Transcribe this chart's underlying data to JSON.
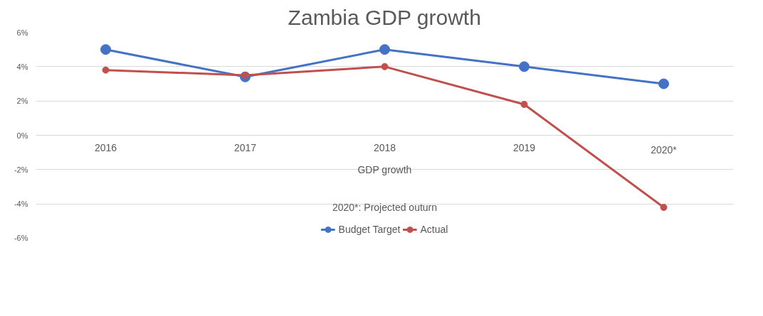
{
  "chart_data": {
    "type": "line",
    "title": "Zambia GDP growth",
    "xlabel": "GDP growth",
    "categories": [
      "2016",
      "2017",
      "2018",
      "2019",
      "2020*"
    ],
    "series": [
      {
        "name": "Budget Target",
        "color": "#4472c4",
        "values": [
          5.0,
          3.4,
          5.0,
          4.0,
          3.0
        ]
      },
      {
        "name": "Actual",
        "color": "#c0504d",
        "values": [
          3.8,
          3.5,
          4.0,
          1.8,
          -4.2
        ]
      }
    ],
    "ylim": [
      -6,
      6
    ],
    "yticks": [
      {
        "value": 6,
        "label": "6%"
      },
      {
        "value": 4,
        "label": "4%"
      },
      {
        "value": 2,
        "label": "2%"
      },
      {
        "value": 0,
        "label": "0%"
      },
      {
        "value": -2,
        "label": "-2%"
      },
      {
        "value": -4,
        "label": "-4%"
      },
      {
        "value": -6,
        "label": "-6%"
      }
    ],
    "annotations": [
      "2020*: Projected outurn"
    ],
    "grid": "y",
    "legend": "bottom",
    "marker": "circle",
    "line_style": "solid"
  }
}
